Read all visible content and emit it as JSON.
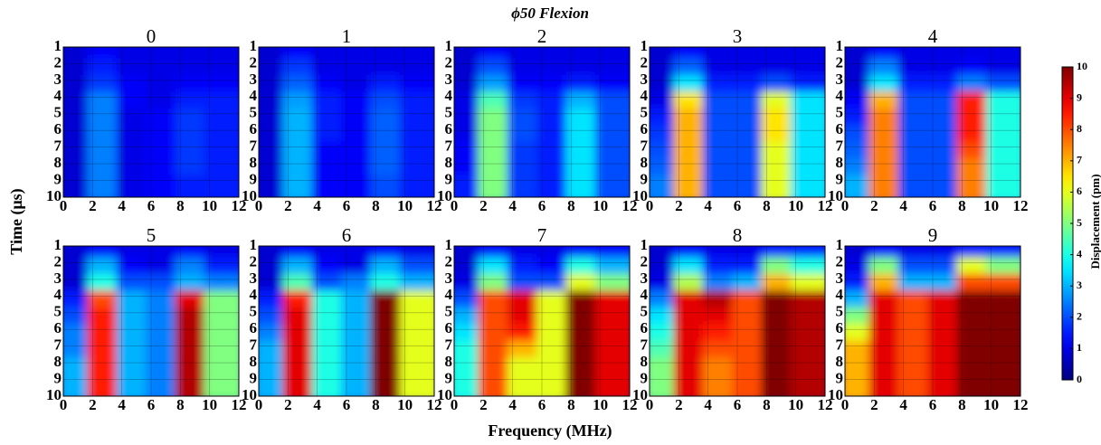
{
  "figure": {
    "title": "ϕ50   Flexion",
    "xlabel": "Frequency (MHz)",
    "ylabel": "Time (μs)",
    "colorbar": {
      "label": "Displacement (pm)",
      "lim": [
        0,
        10
      ],
      "ticks": [
        0,
        1,
        2,
        3,
        4,
        5,
        6,
        7,
        8,
        9,
        10
      ],
      "colormap": "jet"
    }
  },
  "chart_data": [
    {
      "type": "heatmap",
      "title": "0",
      "x": [
        1,
        3,
        5,
        7,
        9,
        11
      ],
      "y": [
        1.5,
        2.5,
        3.5,
        4.5,
        5.5,
        6.5,
        7.5,
        8.5,
        9.5
      ],
      "xlim": [
        0,
        12
      ],
      "ylim": [
        10,
        1
      ],
      "xticks": [
        0,
        2,
        4,
        6,
        8,
        10,
        12
      ],
      "yticks": [
        1,
        2,
        3,
        4,
        5,
        6,
        7,
        8,
        9,
        10
      ],
      "grid": true,
      "z": [
        [
          0.8,
          1.2,
          1,
          1,
          1,
          1
        ],
        [
          0.8,
          1.5,
          1,
          1,
          1,
          1
        ],
        [
          0.8,
          1.8,
          1.2,
          1,
          1.2,
          1.2
        ],
        [
          0.8,
          2.5,
          1.2,
          1,
          1.5,
          1.5
        ],
        [
          0.8,
          2.5,
          1,
          1.2,
          1.8,
          1.5
        ],
        [
          0.8,
          2.5,
          1,
          1.2,
          1.8,
          1.5
        ],
        [
          0.8,
          2.5,
          1,
          1.2,
          1.8,
          1.5
        ],
        [
          0.8,
          2.5,
          1,
          1.2,
          1.8,
          1.5
        ],
        [
          0.8,
          2.5,
          1,
          1.2,
          1.5,
          1.5
        ]
      ]
    },
    {
      "type": "heatmap",
      "title": "1",
      "x": [
        1,
        3,
        5,
        7,
        9,
        11
      ],
      "y": [
        1.5,
        2.5,
        3.5,
        4.5,
        5.5,
        6.5,
        7.5,
        8.5,
        9.5
      ],
      "xlim": [
        0,
        12
      ],
      "ylim": [
        10,
        1
      ],
      "xticks": [
        0,
        2,
        4,
        6,
        8,
        10,
        12
      ],
      "yticks": [
        1,
        2,
        3,
        4,
        5,
        6,
        7,
        8,
        9,
        10
      ],
      "grid": true,
      "z": [
        [
          0.8,
          1.2,
          1,
          1,
          1,
          1
        ],
        [
          0.8,
          1.8,
          1,
          1,
          1,
          1
        ],
        [
          0.8,
          2.2,
          1.2,
          1,
          1.5,
          1.2
        ],
        [
          0.8,
          2.8,
          1.5,
          1.2,
          2,
          1.5
        ],
        [
          0.8,
          3,
          1.5,
          1.2,
          2.2,
          1.5
        ],
        [
          0.8,
          3,
          1.5,
          1.2,
          2.2,
          1.5
        ],
        [
          0.8,
          3,
          1.2,
          1.2,
          2.2,
          1.5
        ],
        [
          0.8,
          3,
          1.2,
          1.2,
          2.2,
          1.5
        ],
        [
          0.8,
          3,
          1.2,
          1.2,
          2,
          1.5
        ]
      ]
    },
    {
      "type": "heatmap",
      "title": "2",
      "x": [
        1,
        3,
        5,
        7,
        9,
        11
      ],
      "y": [
        1.5,
        2.5,
        3.5,
        4.5,
        5.5,
        6.5,
        7.5,
        8.5,
        9.5
      ],
      "xlim": [
        0,
        12
      ],
      "ylim": [
        10,
        1
      ],
      "xticks": [
        0,
        2,
        4,
        6,
        8,
        10,
        12
      ],
      "yticks": [
        1,
        2,
        3,
        4,
        5,
        6,
        7,
        8,
        9,
        10
      ],
      "grid": true,
      "z": [
        [
          0.8,
          1.2,
          1,
          1,
          1,
          1
        ],
        [
          0.8,
          2,
          1,
          1,
          1,
          1
        ],
        [
          0.8,
          2.8,
          1.2,
          1.2,
          1.5,
          1.2
        ],
        [
          1,
          4.5,
          1.8,
          1.5,
          3,
          2
        ],
        [
          1,
          5,
          2,
          1.5,
          3.5,
          2
        ],
        [
          1,
          5,
          2,
          1.5,
          3.5,
          2
        ],
        [
          1.2,
          5,
          1.8,
          1.5,
          3.5,
          2
        ],
        [
          1.2,
          5,
          1.8,
          1.5,
          3.5,
          2
        ],
        [
          1.5,
          5,
          1.8,
          1.5,
          3.5,
          2
        ]
      ]
    },
    {
      "type": "heatmap",
      "title": "3",
      "x": [
        1,
        3,
        5,
        7,
        9,
        11
      ],
      "y": [
        1.5,
        2.5,
        3.5,
        4.5,
        5.5,
        6.5,
        7.5,
        8.5,
        9.5
      ],
      "xlim": [
        0,
        12
      ],
      "ylim": [
        10,
        1
      ],
      "xticks": [
        0,
        2,
        4,
        6,
        8,
        10,
        12
      ],
      "yticks": [
        1,
        2,
        3,
        4,
        5,
        6,
        7,
        8,
        9,
        10
      ],
      "grid": true,
      "z": [
        [
          0.8,
          1.2,
          1,
          1,
          1,
          1
        ],
        [
          0.8,
          2.2,
          1,
          1,
          1,
          1
        ],
        [
          0.8,
          3.5,
          1.5,
          1.5,
          2,
          1.5
        ],
        [
          1,
          6.5,
          2,
          2,
          6,
          3.5
        ],
        [
          1.5,
          7,
          2,
          2,
          6.5,
          3.5
        ],
        [
          1.8,
          7,
          2,
          2,
          6.5,
          3.5
        ],
        [
          2,
          7,
          2,
          2,
          6,
          3.5
        ],
        [
          2.2,
          7,
          2,
          2,
          6,
          3.5
        ],
        [
          2.5,
          7,
          2,
          2,
          6,
          3.5
        ]
      ]
    },
    {
      "type": "heatmap",
      "title": "4",
      "x": [
        1,
        3,
        5,
        7,
        9,
        11
      ],
      "y": [
        1.5,
        2.5,
        3.5,
        4.5,
        5.5,
        6.5,
        7.5,
        8.5,
        9.5
      ],
      "xlim": [
        0,
        12
      ],
      "ylim": [
        10,
        1
      ],
      "xticks": [
        0,
        2,
        4,
        6,
        8,
        10,
        12
      ],
      "yticks": [
        1,
        2,
        3,
        4,
        5,
        6,
        7,
        8,
        9,
        10
      ],
      "grid": true,
      "z": [
        [
          0.8,
          1.2,
          1,
          1,
          1,
          1
        ],
        [
          0.8,
          2.5,
          1,
          1,
          1.2,
          1
        ],
        [
          0.8,
          3.5,
          1.5,
          1.5,
          2.5,
          2
        ],
        [
          1.2,
          7,
          2,
          2,
          8.5,
          4
        ],
        [
          1.5,
          7.5,
          2,
          2,
          8.5,
          4
        ],
        [
          2,
          7.5,
          2,
          2,
          8.5,
          4
        ],
        [
          2.2,
          7.5,
          2,
          2,
          8,
          4
        ],
        [
          2.5,
          7.5,
          2,
          2,
          7.5,
          4
        ],
        [
          3,
          7.5,
          2,
          2,
          7.5,
          4
        ]
      ]
    },
    {
      "type": "heatmap",
      "title": "5",
      "x": [
        1,
        3,
        5,
        7,
        9,
        11
      ],
      "y": [
        1.5,
        2.5,
        3.5,
        4.5,
        5.5,
        6.5,
        7.5,
        8.5,
        9.5
      ],
      "xlim": [
        0,
        12
      ],
      "ylim": [
        10,
        1
      ],
      "xticks": [
        0,
        2,
        4,
        6,
        8,
        10,
        12
      ],
      "yticks": [
        1,
        2,
        3,
        4,
        5,
        6,
        7,
        8,
        9,
        10
      ],
      "grid": true,
      "z": [
        [
          0.8,
          1.2,
          1,
          1,
          1.2,
          1
        ],
        [
          0.8,
          3,
          1.2,
          1,
          2.5,
          1.5
        ],
        [
          0.8,
          4,
          2,
          2,
          3,
          2.5
        ],
        [
          1.5,
          8,
          3,
          2.5,
          9,
          5
        ],
        [
          2,
          8.5,
          3,
          2.5,
          9.5,
          5
        ],
        [
          2.5,
          8.5,
          3,
          2.5,
          9.5,
          5
        ],
        [
          2.5,
          8.5,
          3,
          2.5,
          9.5,
          5
        ],
        [
          3,
          8.5,
          3,
          2.5,
          9.5,
          5
        ],
        [
          3,
          8.5,
          3,
          2.5,
          9.5,
          5
        ]
      ]
    },
    {
      "type": "heatmap",
      "title": "6",
      "x": [
        1,
        3,
        5,
        7,
        9,
        11
      ],
      "y": [
        1.5,
        2.5,
        3.5,
        4.5,
        5.5,
        6.5,
        7.5,
        8.5,
        9.5
      ],
      "xlim": [
        0,
        12
      ],
      "ylim": [
        10,
        1
      ],
      "xticks": [
        0,
        2,
        4,
        6,
        8,
        10,
        12
      ],
      "yticks": [
        1,
        2,
        3,
        4,
        5,
        6,
        7,
        8,
        9,
        10
      ],
      "grid": true,
      "z": [
        [
          0.8,
          1.2,
          1,
          1,
          1.2,
          1
        ],
        [
          0.8,
          3,
          1.2,
          1,
          3,
          2
        ],
        [
          0.8,
          4.5,
          2,
          2.5,
          4,
          3
        ],
        [
          1.5,
          8.5,
          4,
          3,
          10,
          6
        ],
        [
          2,
          9,
          4,
          3,
          10,
          6
        ],
        [
          2.5,
          9,
          4,
          3,
          10,
          6
        ],
        [
          3,
          9,
          4,
          3,
          10,
          6
        ],
        [
          3,
          9,
          4,
          3,
          10,
          6
        ],
        [
          3,
          9,
          4,
          3,
          10,
          6
        ]
      ]
    },
    {
      "type": "heatmap",
      "title": "7",
      "x": [
        1,
        3,
        5,
        7,
        9,
        11
      ],
      "y": [
        1.5,
        2.5,
        3.5,
        4.5,
        5.5,
        6.5,
        7.5,
        8.5,
        9.5
      ],
      "xlim": [
        0,
        12
      ],
      "ylim": [
        10,
        1
      ],
      "xticks": [
        0,
        2,
        4,
        6,
        8,
        10,
        12
      ],
      "yticks": [
        1,
        2,
        3,
        4,
        5,
        6,
        7,
        8,
        9,
        10
      ],
      "grid": true,
      "z": [
        [
          0.8,
          1.2,
          1,
          1,
          1.2,
          1.2
        ],
        [
          0.8,
          3.5,
          1.5,
          1.2,
          4,
          3
        ],
        [
          1,
          5,
          2,
          2,
          6,
          5
        ],
        [
          2,
          8,
          9,
          6,
          10,
          9
        ],
        [
          3,
          8,
          9,
          6,
          10,
          9
        ],
        [
          3.5,
          8,
          8.5,
          6,
          10,
          9
        ],
        [
          4,
          8,
          7,
          6,
          10,
          9
        ],
        [
          4,
          8,
          6,
          6,
          10,
          9
        ],
        [
          4,
          8,
          6,
          6,
          10,
          9
        ]
      ]
    },
    {
      "type": "heatmap",
      "title": "8",
      "x": [
        1,
        3,
        5,
        7,
        9,
        11
      ],
      "y": [
        1.5,
        2.5,
        3.5,
        4.5,
        5.5,
        6.5,
        7.5,
        8.5,
        9.5
      ],
      "xlim": [
        0,
        12
      ],
      "ylim": [
        10,
        1
      ],
      "xticks": [
        0,
        2,
        4,
        6,
        8,
        10,
        12
      ],
      "yticks": [
        1,
        2,
        3,
        4,
        5,
        6,
        7,
        8,
        9,
        10
      ],
      "grid": true,
      "z": [
        [
          0.8,
          1.2,
          1,
          1,
          1.5,
          1.5
        ],
        [
          0.8,
          3.5,
          1.5,
          1.5,
          5,
          4
        ],
        [
          1,
          5.5,
          2.5,
          3,
          7,
          6
        ],
        [
          2.5,
          9,
          9.5,
          8,
          10,
          9.5
        ],
        [
          3.5,
          9,
          9,
          8,
          10,
          9.5
        ],
        [
          4,
          9,
          8.5,
          8,
          10,
          9.5
        ],
        [
          4.5,
          9,
          8,
          8,
          10,
          9.5
        ],
        [
          5,
          9,
          7.5,
          8,
          10,
          9.5
        ],
        [
          5,
          9,
          7.5,
          8,
          10,
          9.5
        ]
      ]
    },
    {
      "type": "heatmap",
      "title": "9",
      "x": [
        1,
        3,
        5,
        7,
        9,
        11
      ],
      "y": [
        1.5,
        2.5,
        3.5,
        4.5,
        5.5,
        6.5,
        7.5,
        8.5,
        9.5
      ],
      "xlim": [
        0,
        12
      ],
      "ylim": [
        10,
        1
      ],
      "xticks": [
        0,
        2,
        4,
        6,
        8,
        10,
        12
      ],
      "yticks": [
        1,
        2,
        3,
        4,
        5,
        6,
        7,
        8,
        9,
        10
      ],
      "grid": true,
      "z": [
        [
          0.8,
          1.2,
          1,
          1,
          1.5,
          1.5
        ],
        [
          1,
          5,
          2,
          2,
          6,
          5
        ],
        [
          1.5,
          7,
          3,
          3,
          8,
          8
        ],
        [
          3,
          9,
          8,
          9,
          10,
          10
        ],
        [
          5,
          9,
          8,
          9,
          10,
          10
        ],
        [
          6,
          9,
          8,
          9,
          10,
          10
        ],
        [
          7,
          9,
          8,
          9,
          10,
          10
        ],
        [
          7,
          9,
          8,
          9,
          10,
          10
        ],
        [
          7,
          9,
          8,
          9,
          10,
          10
        ]
      ]
    }
  ]
}
